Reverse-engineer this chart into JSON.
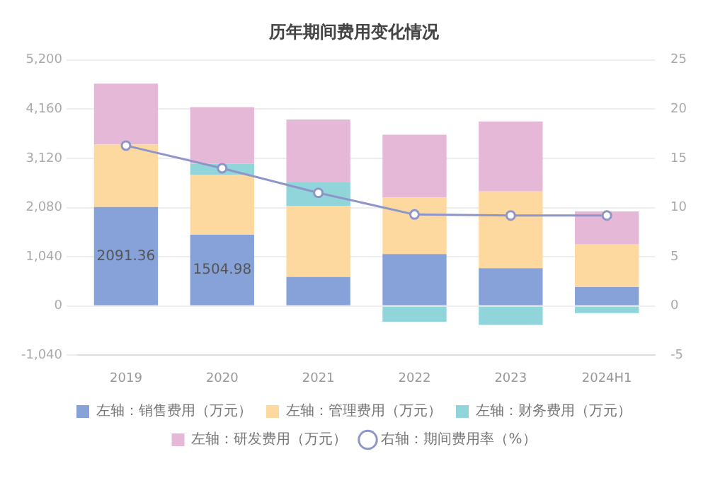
{
  "chart_data": {
    "type": "bar",
    "title": "历年期间费用变化情况",
    "stacked": true,
    "categories": [
      "2019",
      "2020",
      "2021",
      "2022",
      "2023",
      "2024H1"
    ],
    "series": [
      {
        "name": "左轴：销售费用（万元）",
        "color": "#86a2d8",
        "values": [
          2091.36,
          1504.98,
          613,
          1100,
          800,
          400
        ],
        "value_labels": [
          "2091.36",
          "1504.98",
          null,
          null,
          null,
          null
        ]
      },
      {
        "name": "左轴：管理费用（万元）",
        "color": "#fdd9a0",
        "values": [
          1320,
          1270,
          1500,
          1190,
          1620,
          900
        ]
      },
      {
        "name": "左轴：财务费用（万元）",
        "color": "#8fd5d9",
        "values": [
          null,
          230,
          500,
          -330,
          -400,
          -150
        ]
      },
      {
        "name": "左轴：研发费用（万元）",
        "color": "#e6b8d8",
        "values": [
          1290,
          1200,
          1330,
          1330,
          1480,
          700
        ]
      },
      {
        "name": "右轴：期间费用率（%）",
        "type": "line",
        "axis": "y2",
        "color": "#8e95c9",
        "marker": "circle",
        "values": [
          16.3,
          14.0,
          11.5,
          9.3,
          9.2,
          9.2
        ]
      }
    ],
    "ylim": [
      -1040,
      5200
    ],
    "yticks": [
      {
        "value": -1040,
        "label": "-1,040"
      },
      0,
      {
        "value": 1040,
        "label": "1,040"
      },
      {
        "value": 2080,
        "label": "2,080"
      },
      {
        "value": 3120,
        "label": "3,120"
      },
      {
        "value": 4160,
        "label": "4,160"
      },
      {
        "value": 5200,
        "label": "5,200"
      }
    ],
    "y2lim": [
      -5,
      25
    ],
    "y2ticks": [
      -5,
      0,
      5,
      10,
      15,
      20,
      25
    ],
    "grid": "y",
    "legend": "bottom"
  }
}
